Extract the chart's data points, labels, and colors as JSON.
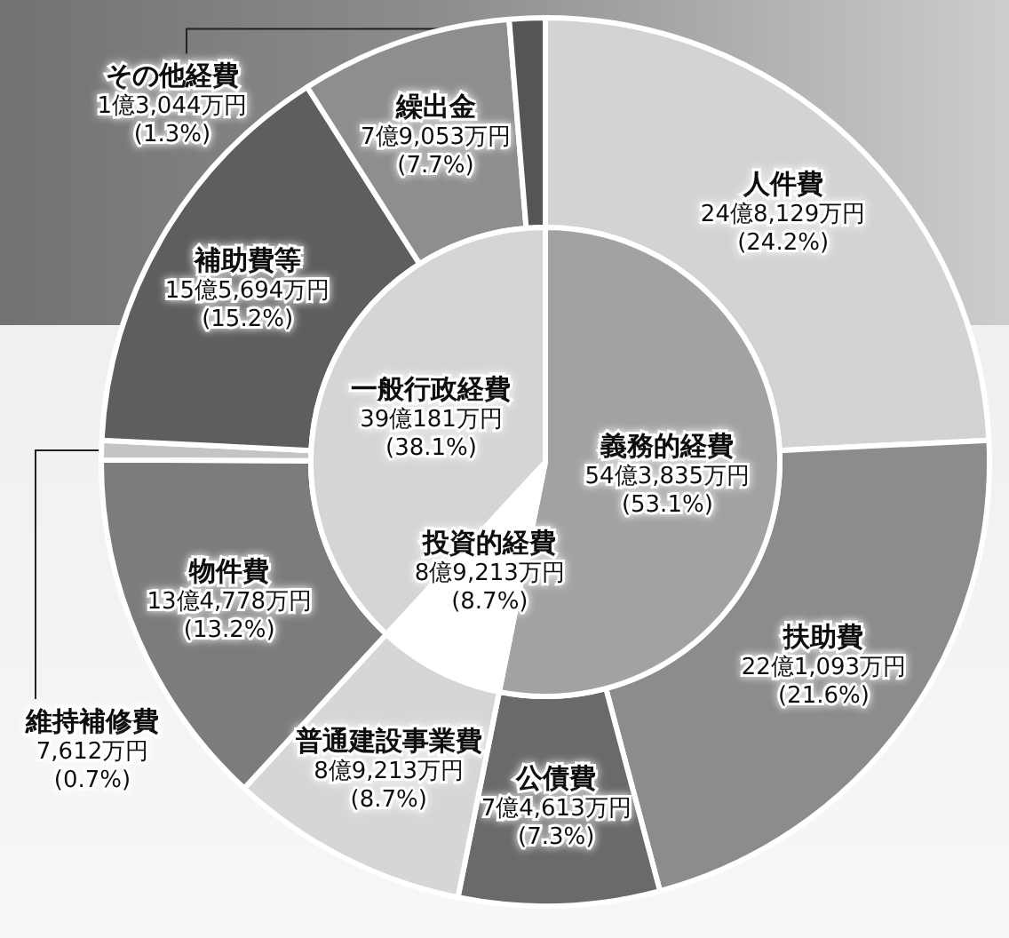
{
  "chart_data": [
    {
      "type": "donut",
      "categories": [
        "人件費",
        "扶助費",
        "公債費",
        "普通建設事業費",
        "物件費",
        "維持補修費",
        "補助費等",
        "繰出金",
        "その他経費"
      ],
      "values": [
        24.2,
        21.6,
        7.3,
        8.7,
        13.2,
        0.7,
        15.2,
        7.7,
        1.3
      ],
      "colors": [
        "#d3d3d3",
        "#8c8c8c",
        "#6a6a6a",
        "#d6d6d6",
        "#7c7c7c",
        "#c4c4c4",
        "#5e5e5e",
        "#8e8e8e",
        "#555555"
      ],
      "value_labels": [
        "24億8,129万円\n(24.2%)",
        "22億1,093万円\n(21.6%)",
        "7億4,613万円\n(7.3%)",
        "8億9,213万円\n(8.7%)",
        "13億4,778万円\n(13.2%)",
        "7,612万円\n(0.7%)",
        "15億5,694万円\n(15.2%)",
        "7億9,053万円\n(7.7%)",
        "1億3,044万円\n(1.3%)"
      ]
    },
    {
      "type": "pie",
      "categories": [
        "義務的経費",
        "投資的経費",
        "一般行政経費"
      ],
      "values": [
        53.1,
        8.7,
        38.1
      ],
      "colors": [
        "#a2a2a2",
        "#ffffff",
        "#d5d5d5"
      ],
      "value_labels": [
        "54億3,835万円\n(53.1%)",
        "8億9,213万円\n(8.7%)",
        "39億181万円\n(38.1%)"
      ]
    }
  ]
}
